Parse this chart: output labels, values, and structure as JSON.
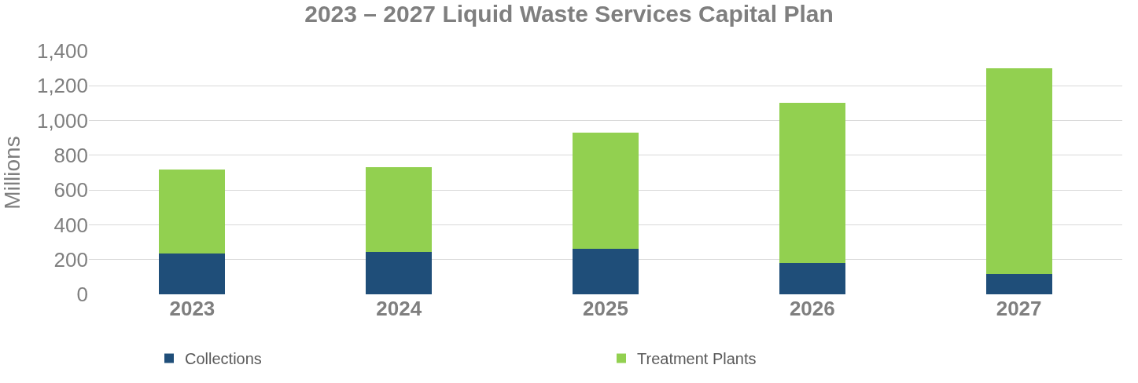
{
  "chart_data": {
    "type": "bar",
    "title": "2023 – 2027 Liquid Waste Services Capital Plan",
    "ylabel": "Millions",
    "categories": [
      "2023",
      "2024",
      "2025",
      "2026",
      "2027"
    ],
    "series": [
      {
        "name": "Collections",
        "color": "#1f4e79",
        "values": [
          237,
          242,
          260,
          181,
          116
        ]
      },
      {
        "name": "Treatment Plants",
        "color": "#92d050",
        "values": [
          479,
          488,
          670,
          921,
          1186
        ]
      }
    ],
    "stacked": true,
    "ylim": [
      0,
      1400
    ],
    "yticks": [
      {
        "value": 0,
        "label": "0"
      },
      {
        "value": 200,
        "label": "200"
      },
      {
        "value": 400,
        "label": "400"
      },
      {
        "value": 600,
        "label": "600"
      },
      {
        "value": 800,
        "label": "800"
      },
      {
        "value": 1000,
        "label": "1,000"
      },
      {
        "value": 1200,
        "label": "1,200"
      },
      {
        "value": 1400,
        "label": "1,400"
      }
    ],
    "grid": "y",
    "legend": "bottom"
  }
}
